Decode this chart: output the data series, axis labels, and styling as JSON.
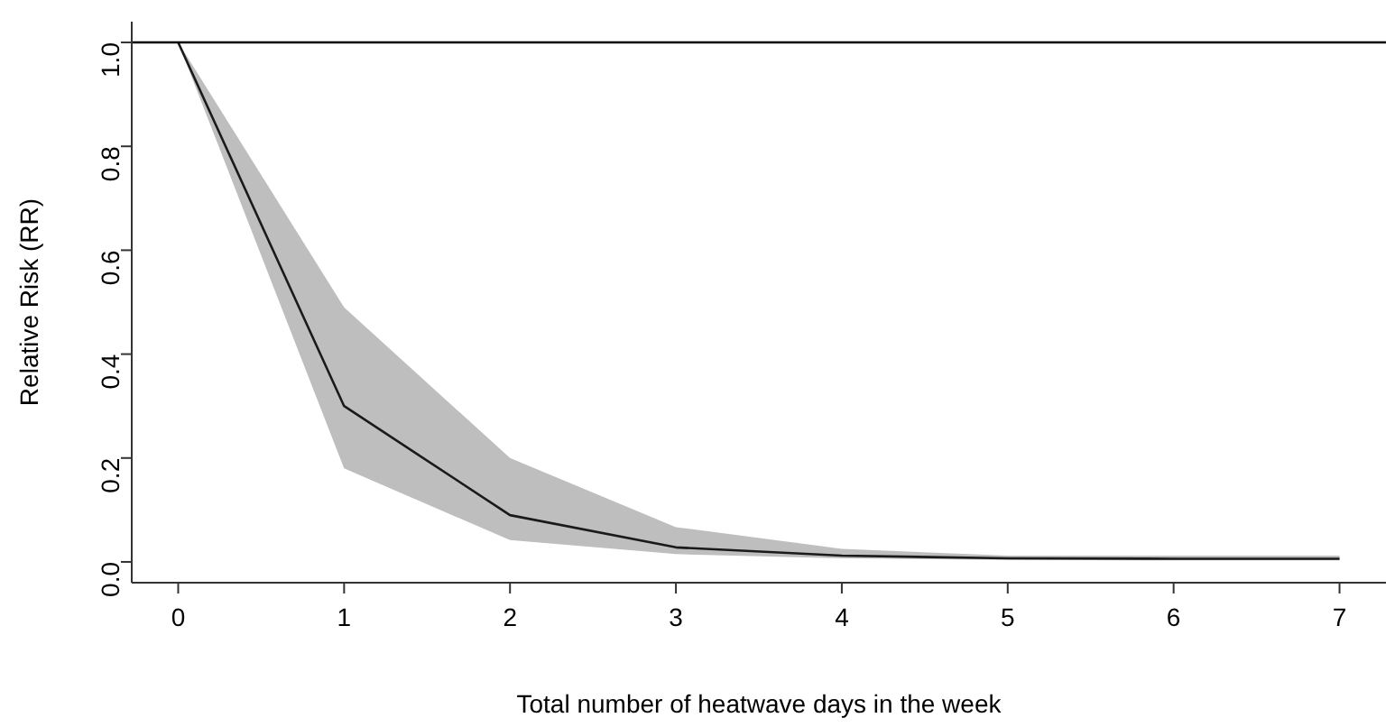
{
  "chart_data": {
    "type": "line",
    "xlabel": "Total number of heatwave days in the week",
    "ylabel": "Relative Risk (RR)",
    "x": [
      0,
      1,
      2,
      3,
      4,
      5,
      6,
      7
    ],
    "series": [
      {
        "color": "#1a1a1a",
        "values": [
          1.0,
          0.3,
          0.09,
          0.028,
          0.012,
          0.007,
          0.006,
          0.006
        ],
        "lower": [
          1.0,
          0.18,
          0.042,
          0.015,
          0.007,
          0.004,
          0.003,
          0.003
        ],
        "upper": [
          1.0,
          0.49,
          0.2,
          0.067,
          0.025,
          0.012,
          0.012,
          0.012
        ]
      }
    ],
    "xlim": [
      -0.28,
      7.28
    ],
    "xticks": [
      0,
      1,
      2,
      3,
      4,
      5,
      6,
      7
    ],
    "ylim": [
      -0.04,
      1.04
    ],
    "yticks": [
      {
        "value": 0,
        "label": "0.0"
      },
      0.2,
      0.4,
      0.6,
      0.8,
      {
        "value": 1,
        "label": "1.0"
      }
    ],
    "ref_lines": [
      {
        "axis": "y",
        "value": 1.0,
        "color": "#000000"
      }
    ],
    "grid": false,
    "legend": false,
    "marker": "none",
    "line_style": "solid"
  }
}
